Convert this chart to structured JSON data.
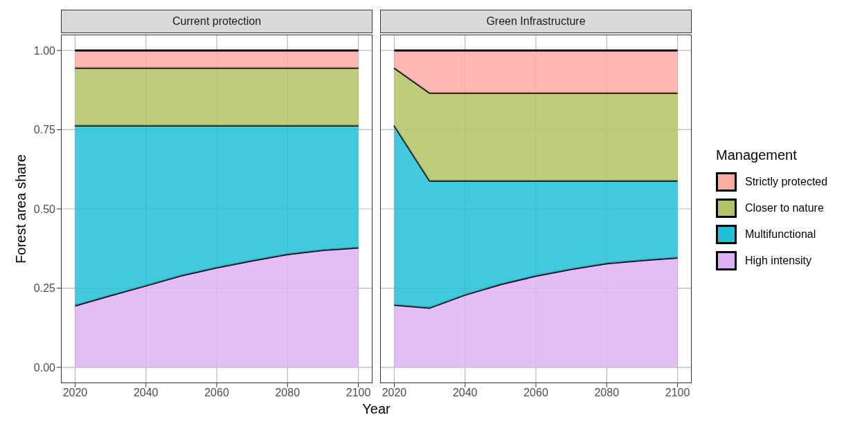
{
  "chart_data": [
    {
      "type": "area",
      "title": "Current protection",
      "xlabel": "Year",
      "ylabel": "Forest area share",
      "stacked": true,
      "grid": true,
      "legend": "right",
      "legend_title": "Management",
      "x": [
        2020,
        2030,
        2040,
        2050,
        2060,
        2070,
        2080,
        2090,
        2100
      ],
      "xlim": [
        2016,
        2104
      ],
      "xticks": [
        2020,
        2040,
        2060,
        2080,
        2100
      ],
      "ylim": [
        -0.05,
        1.05
      ],
      "yticks": [
        {
          "value": 0,
          "label": "0.00"
        },
        {
          "value": 0.25,
          "label": "0.25"
        },
        {
          "value": 0.5,
          "label": "0.50"
        },
        {
          "value": 0.75,
          "label": "0.75"
        },
        {
          "value": 1,
          "label": "1.00"
        }
      ],
      "series": [
        {
          "name": "High intensity",
          "color": "#dfb0f5",
          "values": [
            0.195,
            0.227,
            0.258,
            0.29,
            0.315,
            0.337,
            0.357,
            0.37,
            0.378
          ]
        },
        {
          "name": "Multifunctional",
          "color": "#22c0d7",
          "values": [
            0.568,
            0.536,
            0.505,
            0.473,
            0.448,
            0.426,
            0.406,
            0.393,
            0.385
          ]
        },
        {
          "name": "Closer to nature",
          "color": "#b1c464",
          "values": [
            0.182,
            0.182,
            0.182,
            0.182,
            0.182,
            0.182,
            0.182,
            0.182,
            0.182
          ]
        },
        {
          "name": "Strictly protected",
          "color": "#fdaca4",
          "values": [
            0.055,
            0.055,
            0.055,
            0.055,
            0.055,
            0.055,
            0.055,
            0.055,
            0.055
          ]
        }
      ]
    },
    {
      "type": "area",
      "title": "Green Infrastructure",
      "stacked": true,
      "grid": true,
      "tick_labels": "x",
      "x": [
        2020,
        2030,
        2040,
        2050,
        2060,
        2070,
        2080,
        2090,
        2100
      ],
      "xlim": [
        2016,
        2104
      ],
      "xticks": [
        2020,
        2040,
        2060,
        2080,
        2100
      ],
      "ylim": [
        -0.05,
        1.05
      ],
      "yticks": [
        0,
        0.25,
        0.5,
        0.75,
        1
      ],
      "series": [
        {
          "color": "#dfb0f5",
          "values": [
            0.197,
            0.188,
            0.229,
            0.262,
            0.289,
            0.31,
            0.328,
            0.338,
            0.346
          ]
        },
        {
          "color": "#22c0d7",
          "values": [
            0.566,
            0.401,
            0.36,
            0.327,
            0.3,
            0.279,
            0.261,
            0.251,
            0.243
          ]
        },
        {
          "color": "#b1c464",
          "values": [
            0.182,
            0.277,
            0.277,
            0.277,
            0.277,
            0.277,
            0.277,
            0.277,
            0.277
          ]
        },
        {
          "color": "#fdaca4",
          "values": [
            0.055,
            0.134,
            0.134,
            0.134,
            0.134,
            0.134,
            0.134,
            0.134,
            0.134
          ]
        }
      ]
    }
  ]
}
